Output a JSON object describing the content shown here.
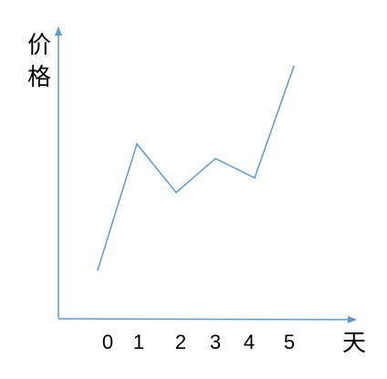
{
  "chart_data": {
    "type": "line",
    "title": "",
    "xlabel": "天",
    "ylabel_chars": [
      "价",
      "格"
    ],
    "x": [
      0,
      1,
      2,
      3,
      4,
      5
    ],
    "categories": [
      "0",
      "1",
      "2",
      "3",
      "4",
      "5"
    ],
    "values": [
      1.0,
      3.6,
      2.6,
      3.3,
      2.9,
      5.2
    ],
    "xlim": [
      -0.5,
      5.5
    ],
    "ylim": [
      0,
      6
    ],
    "grid": false,
    "legend": "none",
    "line_color": "#5b9bd5",
    "axis_color": "#5b9bd5"
  }
}
